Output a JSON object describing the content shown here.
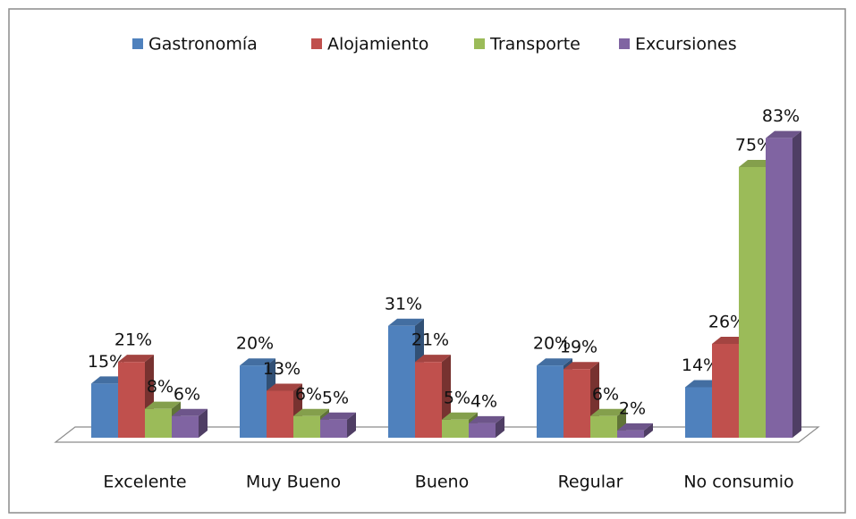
{
  "chart_data": {
    "type": "bar3d",
    "categories": [
      "Excelente",
      "Muy Bueno",
      "Bueno",
      "Regular",
      "No consumio"
    ],
    "series": [
      {
        "name": "Gastronomía",
        "color": "#4f81bd",
        "values": [
          15,
          20,
          31,
          20,
          14
        ],
        "value_labels": [
          "15%",
          "20%",
          "31%",
          "20%",
          "14%"
        ]
      },
      {
        "name": "Alojamiento",
        "color": "#c0504d",
        "values": [
          21,
          13,
          21,
          19,
          26
        ],
        "value_labels": [
          "21%",
          "13%",
          "21%",
          "19%",
          "26%"
        ]
      },
      {
        "name": "Transporte",
        "color": "#9bbb59",
        "values": [
          8,
          6,
          5,
          6,
          75
        ],
        "value_labels": [
          "8%",
          "6%",
          "5%",
          "6%",
          "75%"
        ]
      },
      {
        "name": "Excursiones",
        "color": "#8064a2",
        "values": [
          6,
          5,
          4,
          2,
          83
        ],
        "value_labels": [
          "6%",
          "5%",
          "4%",
          "2%",
          "83%"
        ]
      }
    ],
    "legend": "top"
  }
}
